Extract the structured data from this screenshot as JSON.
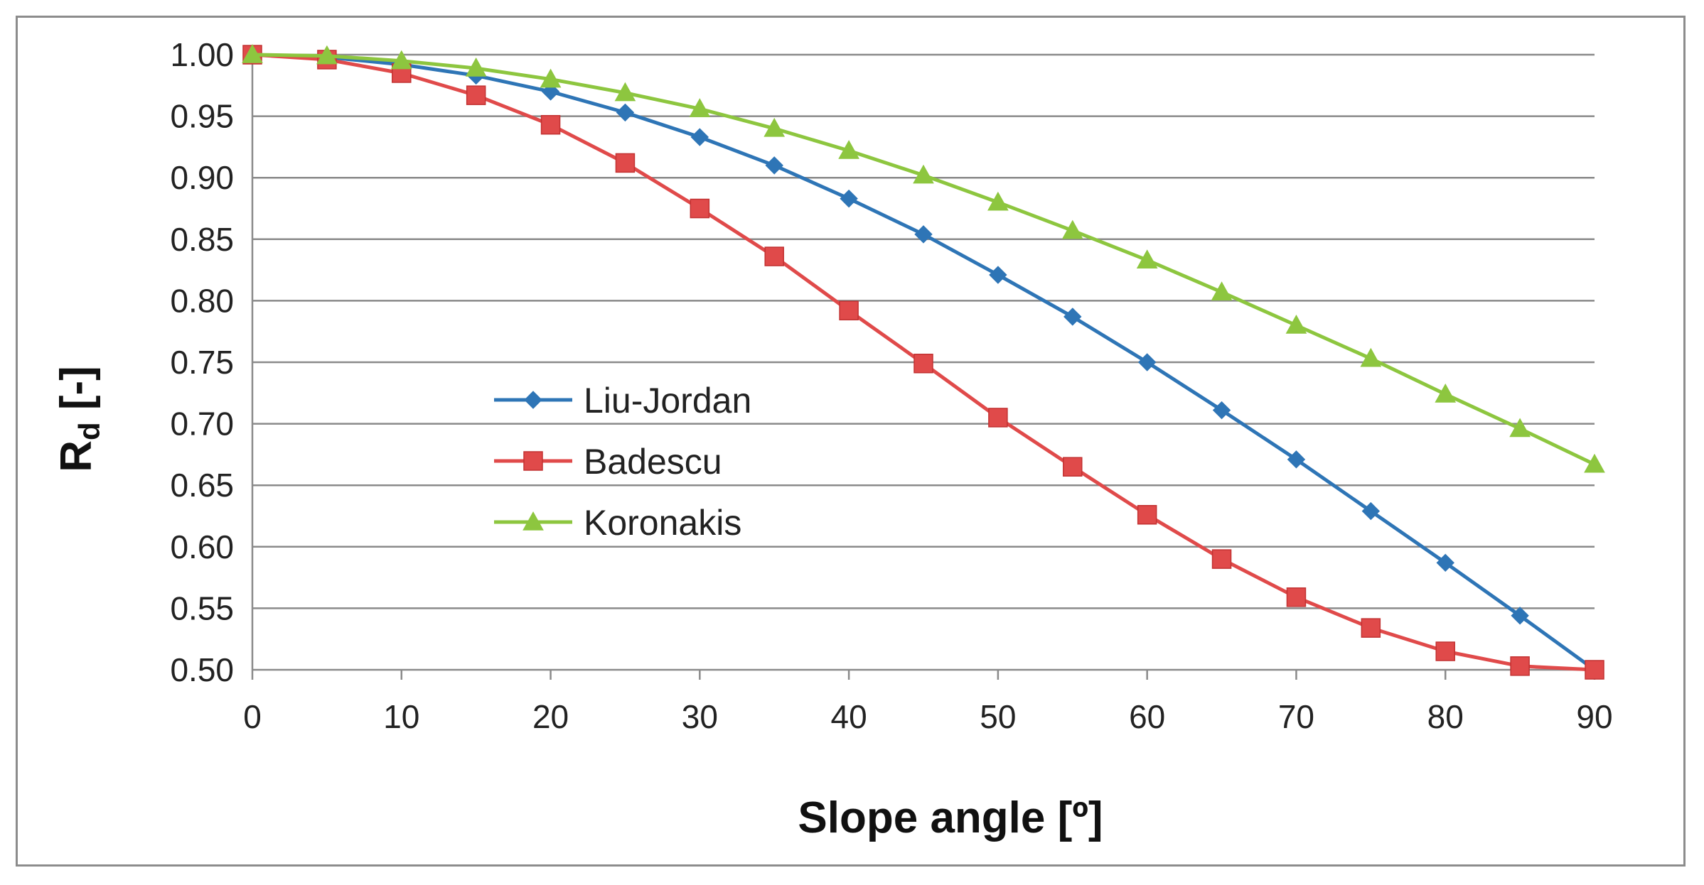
{
  "chart_data": {
    "type": "line",
    "title": "",
    "xlabel": "Slope angle [º]",
    "ylabel": "R",
    "ylabel_subscript": "d",
    "ylabel_suffix": " [-]",
    "xlim": [
      0,
      90
    ],
    "ylim": [
      0.5,
      1.0
    ],
    "x_ticks": [
      "0",
      "10",
      "20",
      "30",
      "40",
      "50",
      "60",
      "70",
      "80",
      "90"
    ],
    "y_ticks": [
      "0.50",
      "0.55",
      "0.60",
      "0.65",
      "0.70",
      "0.75",
      "0.80",
      "0.85",
      "0.90",
      "0.95",
      "1.00"
    ],
    "grid": "horizontal",
    "legend_position": "center-left",
    "x": [
      0,
      5,
      10,
      15,
      20,
      25,
      30,
      35,
      40,
      45,
      50,
      55,
      60,
      65,
      70,
      75,
      80,
      85,
      90
    ],
    "series": [
      {
        "name": "Liu-Jordan",
        "color": "#2e75b6",
        "marker": "diamond",
        "values": [
          1.0,
          0.998,
          0.992,
          0.983,
          0.97,
          0.953,
          0.933,
          0.91,
          0.883,
          0.854,
          0.821,
          0.787,
          0.75,
          0.711,
          0.671,
          0.629,
          0.587,
          0.544,
          0.5
        ]
      },
      {
        "name": "Badescu",
        "color": "#e04a4a",
        "marker": "square",
        "values": [
          1.0,
          0.996,
          0.985,
          0.967,
          0.943,
          0.912,
          0.875,
          0.836,
          0.792,
          0.749,
          0.705,
          0.665,
          0.626,
          0.59,
          0.559,
          0.534,
          0.515,
          0.503,
          0.5
        ]
      },
      {
        "name": "Koronakis",
        "color": "#8dc63f",
        "marker": "triangle",
        "values": [
          1.0,
          0.999,
          0.995,
          0.989,
          0.98,
          0.969,
          0.956,
          0.94,
          0.922,
          0.902,
          0.88,
          0.857,
          0.833,
          0.807,
          0.78,
          0.753,
          0.724,
          0.696,
          0.667
        ]
      }
    ]
  }
}
